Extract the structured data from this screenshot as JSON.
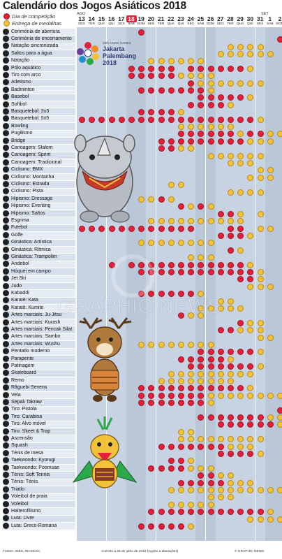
{
  "title": "Calendário dos Jogos Asiáticos 2018",
  "legend": {
    "competition": "Dia de competição",
    "medals": "Entrega de medalhas",
    "competition_color": "#e5203a",
    "medal_color": "#f2c33a"
  },
  "months": {
    "aug": "AGO",
    "sep": "SET"
  },
  "days": [
    {
      "num": "13",
      "wd": "SEG"
    },
    {
      "num": "14",
      "wd": "TER"
    },
    {
      "num": "15",
      "wd": "QUA"
    },
    {
      "num": "16",
      "wd": "QUI"
    },
    {
      "num": "17",
      "wd": "SEX"
    },
    {
      "num": "18",
      "wd": "SÁB"
    },
    {
      "num": "19",
      "wd": "DOM"
    },
    {
      "num": "20",
      "wd": "SEG"
    },
    {
      "num": "21",
      "wd": "TER"
    },
    {
      "num": "22",
      "wd": "QUA"
    },
    {
      "num": "23",
      "wd": "QUI"
    },
    {
      "num": "24",
      "wd": "SEX"
    },
    {
      "num": "25",
      "wd": "SÁB"
    },
    {
      "num": "26",
      "wd": "DOM"
    },
    {
      "num": "27",
      "wd": "SEG"
    },
    {
      "num": "28",
      "wd": "TER"
    },
    {
      "num": "29",
      "wd": "QUA"
    },
    {
      "num": "30",
      "wd": "QUI"
    },
    {
      "num": "31",
      "wd": "SEX"
    },
    {
      "num": "1",
      "wd": "SÁB"
    },
    {
      "num": "2",
      "wd": "DOM"
    }
  ],
  "sports": [
    "Cerimónia de abertura",
    "Cerimónia de encerramento",
    "Natação sincronizada",
    "Saltos para a água",
    "Natação",
    "Pólo aquático",
    "Tiro com arco",
    "Atletismo",
    "Badminton",
    "Basebol",
    "Softbol",
    "Basquetebol: 3x3",
    "Basquetebol: 5x5",
    "Bowling",
    "Pugilismo",
    "Bridge",
    "Canoagem: Slalom",
    "Canoagem: Sprint",
    "Canoagem: Tradicional",
    "Ciclismo: BMX",
    "Ciclismo: Montanha",
    "Ciclismo: Estrada",
    "Ciclismo: Pista",
    "Hipismo: Dressage",
    "Hipismo: Eventing",
    "Hipismo: Saltos",
    "Esgrima",
    "Futebol",
    "Golfe",
    "Ginástica: Artística",
    "Ginástica: Rítmica",
    "Ginástica: Trampolim",
    "Andebol",
    "Hóquei em campo",
    "Jet Ski",
    "Judo",
    "Kabaddi",
    "Karaté: Kata",
    "Karaté: Kumite",
    "Artes marciais: Ju-Jitsu",
    "Artes marciais: Kurash",
    "Artes marciais: Pencak Silat",
    "Artes marciais: Sambo",
    "Artes marciais: Wushu",
    "Pentatlo moderno",
    "Parapente",
    "Patinagem",
    "Skateboard",
    "Remo",
    "Râguebi Sevens",
    "Vela",
    "Sepak Takraw",
    "Tiro: Pistola",
    "Tiro: Carabina",
    "Tiro: Alvo móvel",
    "Tiro: Skeet & Trap",
    "Ascensão",
    "Squash",
    "Ténis de mesa",
    "Taekwondo: Kyorugi",
    "Taekwondo: Poomsae",
    "Ténis: Soft Tennis",
    "Ténis: Ténis",
    "Triatlo",
    "Voleibol de praia",
    "Voleibol",
    "Halterofilismo",
    "Luta: Livre",
    "Luta: Greco-Romana"
  ],
  "schedule": [
    "......C..............",
    "....................C",
    "...............MMMM..",
    "..............MMMMMM.",
    ".......MMMMMM........",
    ".....CCCCC.CCCCCCM...",
    ".....CCCCCMMMM.......",
    "...........CMMMMMMM..",
    "......CCCCCCCM.......",
    "............CCCCCM...",
    "...........CCCCM.....",
    "......CCCCM..........",
    "CCCCCCCCCCCCCCCCCCM..",
    "..........MMMMMM.....",
    "..........CCCCCCMCCMM",
    "........CCCCCCCCCMMM.",
    "........CCMM.........",
    ".............MMMMMM..",
    "...............MMM...",
    "..................MM.",
    ".................MMM.",
    ".........MM..........",
    "...............MMMM..",
    "......MMCM...........",
    "..........CMCM.......",
    "..............CCM.M..",
    ".......MMMMMMMMMM....",
    "CCCCCCCCCCCC...CC.MM.",
    "..............CCCM...",
    "......MMMMMMMM.......",
    "...............CM....",
    "...........MMM.......",
    "...C.CCCCCCCCCCCCM...",
    "......CCCCCCCCCCCCM..",
    "................CCM..",
    ".................MMM.",
    "......CCCCCCM........",
    "..............MM.....",
    "............MMMMM....",
    "..........CMM........",
    "................CMM..",
    "..............CCMMM..",
    "..................MM.",
    "......MMMMMMMM.......",
    "............CCCCCCM..",
    "..........CCCCCM.....",
    "...........CCCCCCCM..",
    ".........MMMMMMMMM...",
    "........MMMMMMMM.....",
    "......CCCCCCCCCCCM...",
    "......CCCCCCCMMMMMMMM",
    "......CCCCCCCM.......",
    "....................C",
    "............CCCCCCCMM",
    "..............CCCCCCM",
    "..........MM.........",
    "..........MMMMMMMMM..",
    "........CCCCCCCMMM...",
    "..............CCCCM..",
    ".........CCM.........",
    ".......CCCCMMM.......",
    "............CCMM.....",
    "..........CCCCCMMM...",
    ".........MMMMMMMMMMMM",
    ".............MMM.....",
    ".........MMMMM.......",
    ".......CCCCCCCCCCCCM.",
    ".................MMMM",
    "......CCCCCM........."
  ],
  "watermark": "GRAPHIC NEWS",
  "logo": {
    "line1": "18th ASIAN GAMES",
    "line2": "Jakarta",
    "line3": "Palembang",
    "line4": "2018"
  },
  "footer": {
    "source": "Fontes: IGBS, INASGOC",
    "note": "Correto a 25 de julho de 2018 (sujeito a alterações)",
    "credit": "© GRAPHIC NEWS"
  }
}
